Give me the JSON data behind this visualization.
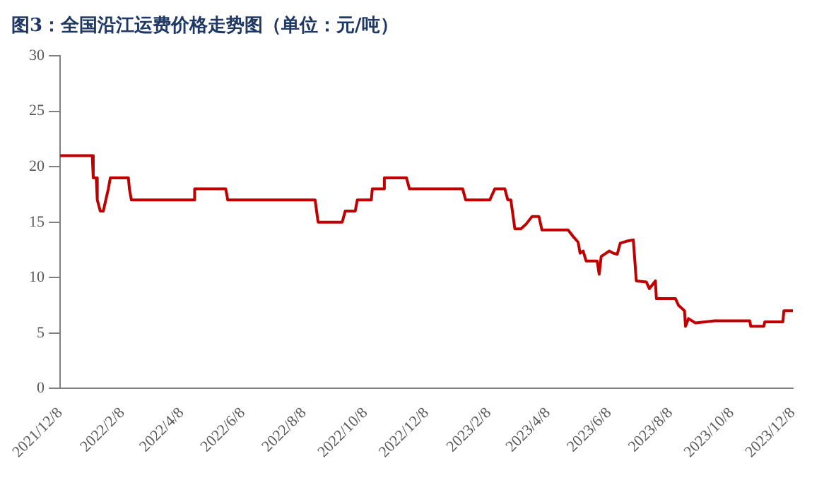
{
  "chart_data": {
    "type": "line",
    "title": "图3：全国沿江运费价格走势图（单位：元/吨）",
    "series": [
      {
        "color": "#c00000",
        "x": [
          "2021-12-08",
          "2022-01-09",
          "2022-01-10",
          "2022-01-13",
          "2022-01-14",
          "2022-01-17",
          "2022-01-20",
          "2022-01-25",
          "2022-01-27",
          "2022-02-14",
          "2022-02-15",
          "2022-02-17",
          "2022-04-20",
          "2022-04-21",
          "2022-05-22",
          "2022-05-24",
          "2022-08-19",
          "2022-08-22",
          "2022-09-15",
          "2022-09-18",
          "2022-09-28",
          "2022-09-30",
          "2022-10-14",
          "2022-10-15",
          "2022-10-26",
          "2022-10-27",
          "2022-11-18",
          "2022-11-21",
          "2023-01-13",
          "2023-01-16",
          "2023-02-09",
          "2023-02-14",
          "2023-02-24",
          "2023-02-27",
          "2023-03-02",
          "2023-03-06",
          "2023-03-12",
          "2023-03-17",
          "2023-03-23",
          "2023-03-30",
          "2023-04-02",
          "2023-04-28",
          "2023-05-04",
          "2023-05-08",
          "2023-05-10",
          "2023-05-13",
          "2023-05-16",
          "2023-05-27",
          "2023-05-29",
          "2023-05-31",
          "2023-06-08",
          "2023-06-12",
          "2023-06-16",
          "2023-06-19",
          "2023-06-26",
          "2023-07-02",
          "2023-07-05",
          "2023-07-15",
          "2023-07-18",
          "2023-07-24",
          "2023-07-25",
          "2023-08-13",
          "2023-08-16",
          "2023-08-22",
          "2023-08-23",
          "2023-08-26",
          "2023-09-02",
          "2023-09-21",
          "2023-10-26",
          "2023-10-27",
          "2023-11-09",
          "2023-11-10",
          "2023-11-28",
          "2023-11-29",
          "2023-12-08"
        ],
        "values": [
          21,
          21,
          19,
          19,
          17,
          16,
          16,
          18,
          19,
          19,
          18,
          17,
          17,
          18,
          18,
          17,
          17,
          15,
          15,
          16,
          16,
          17,
          17,
          18,
          18,
          19,
          19,
          18,
          18,
          17,
          17,
          18,
          18,
          17,
          17,
          14.4,
          14.4,
          14.8,
          15.5,
          15.5,
          14.3,
          14.3,
          13.6,
          13.2,
          12.2,
          12.4,
          11.5,
          11.5,
          10.3,
          11.9,
          12.4,
          12.2,
          12.1,
          13.1,
          13.3,
          13.4,
          9.7,
          9.6,
          9.0,
          9.7,
          8.1,
          8.1,
          7.5,
          7.0,
          5.6,
          6.3,
          5.9,
          6.1,
          6.1,
          5.6,
          5.6,
          6.0,
          6.0,
          7.0,
          7.0
        ]
      }
    ],
    "xlim": [
      "2021-12-08",
      "2023-12-08"
    ],
    "xticks": [
      {
        "value": "2021-12-08",
        "label": "2021/12/8"
      },
      {
        "value": "2022-02-08",
        "label": "2022/2/8"
      },
      {
        "value": "2022-04-08",
        "label": "2022/4/8"
      },
      {
        "value": "2022-06-08",
        "label": "2022/6/8"
      },
      {
        "value": "2022-08-08",
        "label": "2022/8/8"
      },
      {
        "value": "2022-10-08",
        "label": "2022/10/8"
      },
      {
        "value": "2022-12-08",
        "label": "2022/12/8"
      },
      {
        "value": "2023-02-08",
        "label": "2023/2/8"
      },
      {
        "value": "2023-04-08",
        "label": "2023/4/8"
      },
      {
        "value": "2023-06-08",
        "label": "2023/6/8"
      },
      {
        "value": "2023-08-08",
        "label": "2023/8/8"
      },
      {
        "value": "2023-10-08",
        "label": "2023/10/8"
      },
      {
        "value": "2023-12-08",
        "label": "2023/12/8"
      }
    ],
    "ylim": [
      0,
      30
    ],
    "yticks": [
      0,
      5,
      10,
      15,
      20,
      25,
      30
    ],
    "grid": false,
    "legend": false,
    "marker": "none",
    "line_style": "solid"
  }
}
